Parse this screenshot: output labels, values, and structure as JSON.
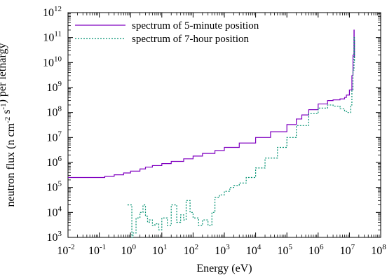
{
  "chart_data": {
    "type": "line",
    "xlabel": "Energy (eV)",
    "ylabel": "neutron flux (n cm-2 s-1) per lethargy",
    "xscale": "log",
    "yscale": "log",
    "xlim": [
      0.01,
      100000000
    ],
    "ylim": [
      1000,
      1000000000000
    ],
    "legend_position": "top-left",
    "x_ticks": [
      {
        "base": "10",
        "exp": "-2",
        "value": 0.01
      },
      {
        "base": "10",
        "exp": "-1",
        "value": 0.1
      },
      {
        "base": "10",
        "exp": "0",
        "value": 1
      },
      {
        "base": "10",
        "exp": "1",
        "value": 10
      },
      {
        "base": "10",
        "exp": "2",
        "value": 100
      },
      {
        "base": "10",
        "exp": "3",
        "value": 1000
      },
      {
        "base": "10",
        "exp": "4",
        "value": 10000
      },
      {
        "base": "10",
        "exp": "5",
        "value": 100000
      },
      {
        "base": "10",
        "exp": "6",
        "value": 1000000
      },
      {
        "base": "10",
        "exp": "7",
        "value": 10000000
      },
      {
        "base": "10",
        "exp": "8",
        "value": 100000000
      }
    ],
    "y_ticks": [
      {
        "base": "10",
        "exp": "3",
        "value": 1000
      },
      {
        "base": "10",
        "exp": "4",
        "value": 10000
      },
      {
        "base": "10",
        "exp": "5",
        "value": 100000
      },
      {
        "base": "10",
        "exp": "6",
        "value": 1000000
      },
      {
        "base": "10",
        "exp": "7",
        "value": 10000000
      },
      {
        "base": "10",
        "exp": "8",
        "value": 100000000
      },
      {
        "base": "10",
        "exp": "9",
        "value": 1000000000
      },
      {
        "base": "10",
        "exp": "10",
        "value": 10000000000
      },
      {
        "base": "10",
        "exp": "11",
        "value": 100000000000
      },
      {
        "base": "10",
        "exp": "12",
        "value": 1000000000000
      }
    ],
    "series": [
      {
        "name": "spectrum of 5-minute position",
        "color": "#8000c0",
        "dash": "solid",
        "x": [
          0.01,
          0.1,
          0.15,
          0.3,
          0.6,
          1,
          2,
          3,
          5,
          10,
          20,
          50,
          100,
          200,
          500,
          1000,
          3000,
          10000,
          30000,
          100000,
          200000,
          300000,
          500000,
          1000000,
          2000000,
          3000000,
          5000000,
          7000000,
          8000000,
          10000000,
          12000000,
          13000000,
          14000000,
          14200000,
          14500000
        ],
        "y": [
          250000,
          250000,
          280000,
          320000,
          380000,
          450000,
          550000,
          650000,
          750000,
          900000,
          1100000,
          1400000,
          1800000,
          2300000,
          3000000,
          4000000,
          6000000,
          10000000,
          17000000,
          33000000,
          55000000,
          80000000,
          130000000,
          220000000,
          300000000,
          320000000,
          350000000,
          400000000,
          500000000,
          800000000,
          3000000000,
          20000000000,
          200000000000,
          80000000000,
          15000000000
        ]
      },
      {
        "name": "spectrum of 7-hour position",
        "color": "#009070",
        "dash": "dashed",
        "x": [
          0.8,
          1.1,
          1.2,
          1.5,
          2,
          2.5,
          3,
          3.5,
          4,
          5,
          6,
          8,
          10,
          15,
          20,
          30,
          40,
          50,
          60,
          80,
          100,
          150,
          200,
          300,
          400,
          500,
          700,
          1000,
          1500,
          2000,
          3000,
          5000,
          10000,
          20000,
          50000,
          100000,
          200000,
          500000,
          1000000,
          2000000,
          3000000,
          5000000,
          7000000,
          9000000,
          11000000,
          12000000,
          13000000,
          14000000,
          14500000
        ],
        "y": [
          20000,
          1000,
          1500,
          6000,
          10000,
          20000,
          7000,
          4000,
          5000,
          3000,
          3500,
          2000,
          6000,
          3000,
          20000,
          4000,
          8000,
          5000,
          30000,
          10000,
          6000,
          3000,
          5000,
          3000,
          10000,
          40000,
          50000,
          70000,
          100000,
          120000,
          150000,
          250000,
          600000,
          1500000,
          4000000,
          10000000,
          30000000,
          90000000,
          150000000,
          200000000,
          180000000,
          140000000,
          110000000,
          100000000,
          200000000,
          800000000,
          5000000000,
          100000000000,
          10000000000
        ]
      }
    ]
  }
}
